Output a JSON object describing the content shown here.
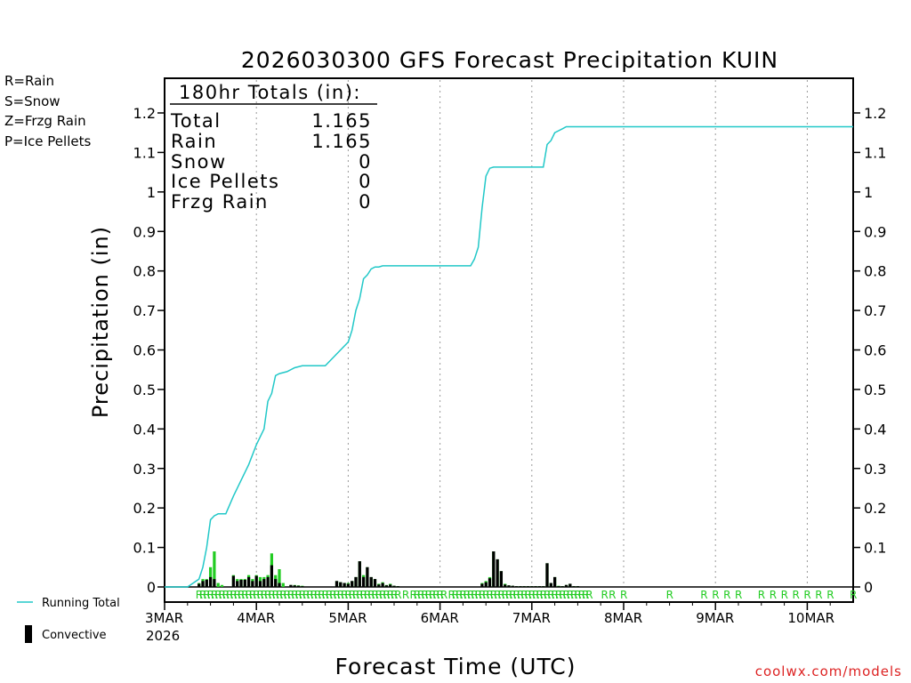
{
  "chart_data": {
    "type": "line",
    "title": "2026030300 GFS Forecast Precipitation KUIN",
    "xlabel": "Forecast Time (UTC)",
    "ylabel": "Precipitation (in)",
    "ylim": [
      0,
      1.28
    ],
    "xlim_hours": [
      0,
      180
    ],
    "y_ticks": [
      "0",
      "0.1",
      "0.2",
      "0.3",
      "0.4",
      "0.5",
      "0.6",
      "0.7",
      "0.8",
      "0.9",
      "1",
      "1.1",
      "1.2"
    ],
    "y_tick_values": [
      0,
      0.1,
      0.2,
      0.3,
      0.4,
      0.5,
      0.6,
      0.7,
      0.8,
      0.9,
      1.0,
      1.1,
      1.2
    ],
    "x_tick_hours": [
      0,
      24,
      48,
      72,
      96,
      120,
      144,
      168
    ],
    "x_ticks": [
      "3MAR",
      "4MAR",
      "5MAR",
      "6MAR",
      "7MAR",
      "8MAR",
      "9MAR",
      "10MAR"
    ],
    "x_year_label": "2026",
    "grid": "vertical-dotted",
    "precip_type_legend": [
      {
        "label": "R=Rain",
        "color": "#22cc22"
      },
      {
        "label": "S=Snow",
        "color": "#3355ee"
      },
      {
        "label": "Z=Frzg Rain",
        "color": "#f08a3c"
      },
      {
        "label": "P=Ice Pellets",
        "color": "#ee2288"
      }
    ],
    "totals_box": {
      "header": "180hr Totals (in):",
      "rows": [
        {
          "label": "Total",
          "value": "1.165"
        },
        {
          "label": "Rain",
          "value": "1.165"
        },
        {
          "label": "Snow",
          "value": "0"
        },
        {
          "label": "Ice Pellets",
          "value": "0"
        },
        {
          "label": "Frzg Rain",
          "value": "0"
        }
      ]
    },
    "legend_bottom": {
      "running_total": "Running Total",
      "convective": "Convective"
    },
    "credit": "coolwx.com/models",
    "colors": {
      "running_total": "#22c8c8",
      "rain": "#22cc22",
      "convective": "#000000"
    },
    "running_total": {
      "x": [
        0,
        6,
        9,
        10,
        11,
        12,
        13,
        14,
        16,
        18,
        20,
        22,
        24,
        26,
        27,
        28,
        29,
        30,
        32,
        34,
        36,
        38,
        42,
        44,
        46,
        48,
        49,
        50,
        51,
        52,
        53,
        54,
        55,
        56,
        57,
        60,
        66,
        75,
        80,
        81,
        82,
        83,
        84,
        85,
        86,
        95,
        99,
        100,
        101,
        102,
        103,
        104,
        105,
        106,
        107,
        108,
        180
      ],
      "y": [
        0,
        0,
        0.02,
        0.05,
        0.1,
        0.17,
        0.18,
        0.185,
        0.185,
        0.23,
        0.27,
        0.31,
        0.36,
        0.4,
        0.47,
        0.49,
        0.535,
        0.54,
        0.545,
        0.555,
        0.56,
        0.56,
        0.56,
        0.58,
        0.6,
        0.62,
        0.65,
        0.7,
        0.73,
        0.78,
        0.79,
        0.805,
        0.81,
        0.81,
        0.813,
        0.813,
        0.813,
        0.813,
        0.813,
        0.83,
        0.86,
        0.96,
        1.04,
        1.06,
        1.063,
        1.063,
        1.063,
        1.12,
        1.13,
        1.15,
        1.155,
        1.16,
        1.165,
        1.165,
        1.165,
        1.165,
        1.165
      ]
    },
    "bars": {
      "hours": [
        9,
        10,
        11,
        12,
        13,
        14,
        15,
        18,
        19,
        20,
        21,
        22,
        23,
        24,
        25,
        26,
        27,
        28,
        29,
        30,
        31,
        33,
        34,
        35,
        36,
        45,
        46,
        47,
        48,
        49,
        50,
        51,
        52,
        53,
        54,
        55,
        56,
        57,
        58,
        59,
        60,
        61,
        83,
        84,
        85,
        86,
        87,
        88,
        89,
        90,
        91,
        92,
        93,
        94,
        95,
        96,
        97,
        98,
        99,
        100,
        101,
        102,
        103,
        104,
        105,
        106,
        107,
        108
      ],
      "total": [
        0.01,
        0.02,
        0.02,
        0.05,
        0.09,
        0.01,
        0.005,
        0.03,
        0.02,
        0.02,
        0.02,
        0.03,
        0.02,
        0.03,
        0.025,
        0.025,
        0.03,
        0.085,
        0.03,
        0.045,
        0.01,
        0.005,
        0.005,
        0.004,
        0.003,
        0.015,
        0.012,
        0.01,
        0.01,
        0.015,
        0.025,
        0.065,
        0.03,
        0.05,
        0.025,
        0.02,
        0.008,
        0.012,
        0.005,
        0.008,
        0.003,
        0.002,
        0.01,
        0.015,
        0.025,
        0.09,
        0.07,
        0.04,
        0.008,
        0.004,
        0.003,
        0.002,
        0.002,
        0.002,
        0.002,
        0.002,
        0.002,
        0.002,
        0.002,
        0.06,
        0.01,
        0.025,
        0.003,
        0.002,
        0.005,
        0.008,
        0.002,
        0.002
      ],
      "convective": [
        0.008,
        0.015,
        0.018,
        0.025,
        0.02,
        0.0,
        0.0,
        0.028,
        0.015,
        0.018,
        0.018,
        0.025,
        0.015,
        0.028,
        0.015,
        0.02,
        0.025,
        0.055,
        0.02,
        0.01,
        0.0,
        0.005,
        0.004,
        0.003,
        0.002,
        0.015,
        0.012,
        0.01,
        0.008,
        0.015,
        0.025,
        0.065,
        0.025,
        0.05,
        0.025,
        0.02,
        0.006,
        0.01,
        0.004,
        0.006,
        0.003,
        0.002,
        0.008,
        0.012,
        0.022,
        0.09,
        0.07,
        0.04,
        0.006,
        0.004,
        0.003,
        0.002,
        0.002,
        0.002,
        0.002,
        0.002,
        0.002,
        0.002,
        0.002,
        0.06,
        0.01,
        0.025,
        0.002,
        0.002,
        0.005,
        0.008,
        0.002,
        0.002
      ]
    },
    "ptype_markers": {
      "symbol": "R",
      "hours": [
        9,
        10,
        11,
        12,
        13,
        14,
        15,
        16,
        17,
        18,
        19,
        20,
        21,
        22,
        23,
        24,
        25,
        26,
        27,
        28,
        29,
        30,
        31,
        32,
        33,
        34,
        35,
        36,
        37,
        38,
        39,
        40,
        41,
        42,
        43,
        44,
        45,
        46,
        47,
        48,
        49,
        50,
        51,
        52,
        53,
        54,
        55,
        56,
        57,
        58,
        59,
        60,
        61,
        63,
        65,
        66,
        67,
        68,
        69,
        70,
        71,
        72,
        73,
        75,
        76,
        77,
        78,
        79,
        80,
        81,
        82,
        83,
        84,
        85,
        86,
        87,
        88,
        89,
        90,
        91,
        92,
        93,
        94,
        95,
        96,
        97,
        98,
        99,
        100,
        101,
        102,
        103,
        104,
        105,
        106,
        107,
        108,
        109,
        110,
        111,
        115,
        117,
        120,
        132,
        141,
        144,
        147,
        150,
        156,
        159,
        162,
        165,
        168,
        171,
        174,
        180
      ]
    }
  }
}
